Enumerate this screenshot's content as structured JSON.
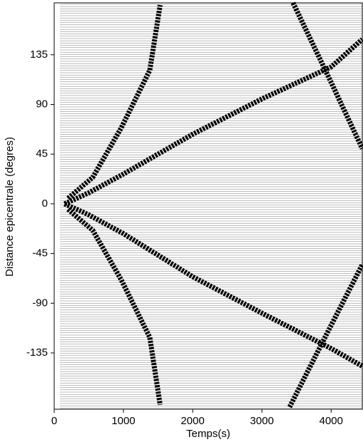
{
  "chart_data": {
    "type": "record-section",
    "xlabel": "Temps(s)",
    "ylabel": "Distance epicentrale (degres)",
    "xlim": [
      0,
      4450
    ],
    "ylim": [
      -186,
      182
    ],
    "xticks": [
      0,
      1000,
      2000,
      3000,
      4000
    ],
    "yticks": [
      -135,
      -90,
      -45,
      0,
      45,
      90,
      135
    ],
    "color": "#000000",
    "phases": [
      {
        "x": [
          150,
          500,
          1000,
          2000,
          3000,
          4000,
          4450
        ],
        "y": [
          0,
          10,
          27,
          63,
          95,
          124,
          149
        ]
      },
      {
        "x": [
          150,
          500,
          1000,
          2000,
          3000,
          4000,
          4450
        ],
        "y": [
          0,
          -10,
          -27,
          -66,
          -99,
          -131,
          -147
        ]
      },
      {
        "x": [
          200,
          557,
          970,
          1381,
          1530
        ],
        "y": [
          5,
          24,
          69,
          121,
          180
        ]
      },
      {
        "x": [
          200,
          557,
          970,
          1381,
          1530
        ],
        "y": [
          -5,
          -24,
          -69,
          -121,
          -182
        ]
      },
      {
        "x": [
          3450,
          4000,
          4450
        ],
        "y": [
          182,
          110,
          50
        ]
      },
      {
        "x": [
          3400,
          4000,
          4450
        ],
        "y": [
          -184,
          -110,
          -55
        ]
      }
    ]
  }
}
